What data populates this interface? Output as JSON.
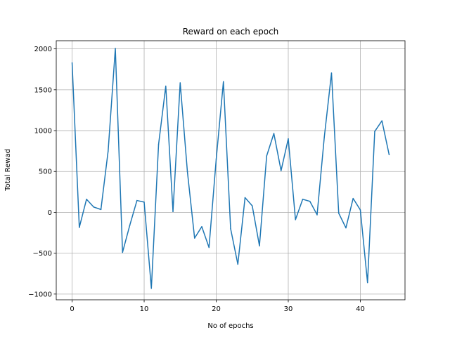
{
  "chart_data": {
    "type": "line",
    "title": "Reward on each epoch",
    "xlabel": "No of epochs",
    "ylabel": "Total Rewad",
    "xlim": [
      -2.2,
      46.2
    ],
    "ylim": [
      -1070,
      2100
    ],
    "xticks": [
      0,
      10,
      20,
      30,
      40
    ],
    "yticks": [
      -1000,
      -500,
      0,
      500,
      1000,
      1500,
      2000
    ],
    "grid": true,
    "series": [
      {
        "color": "#1f77b4",
        "x": [
          0,
          1,
          2,
          3,
          4,
          5,
          6,
          7,
          8,
          9,
          10,
          11,
          12,
          13,
          14,
          15,
          16,
          17,
          18,
          19,
          20,
          21,
          22,
          23,
          24,
          25,
          26,
          27,
          28,
          29,
          30,
          31,
          32,
          33,
          34,
          35,
          36,
          37,
          38,
          39,
          40,
          41,
          42,
          43,
          44
        ],
        "values": [
          1830,
          -185,
          160,
          65,
          35,
          750,
          2005,
          -490,
          -160,
          145,
          125,
          -930,
          830,
          1545,
          10,
          1585,
          500,
          -315,
          -175,
          -430,
          650,
          1600,
          -200,
          -635,
          180,
          80,
          -410,
          690,
          965,
          510,
          900,
          -90,
          160,
          135,
          -30,
          920,
          1705,
          -10,
          -190,
          170,
          30,
          -860,
          990,
          1120,
          705
        ]
      }
    ]
  }
}
